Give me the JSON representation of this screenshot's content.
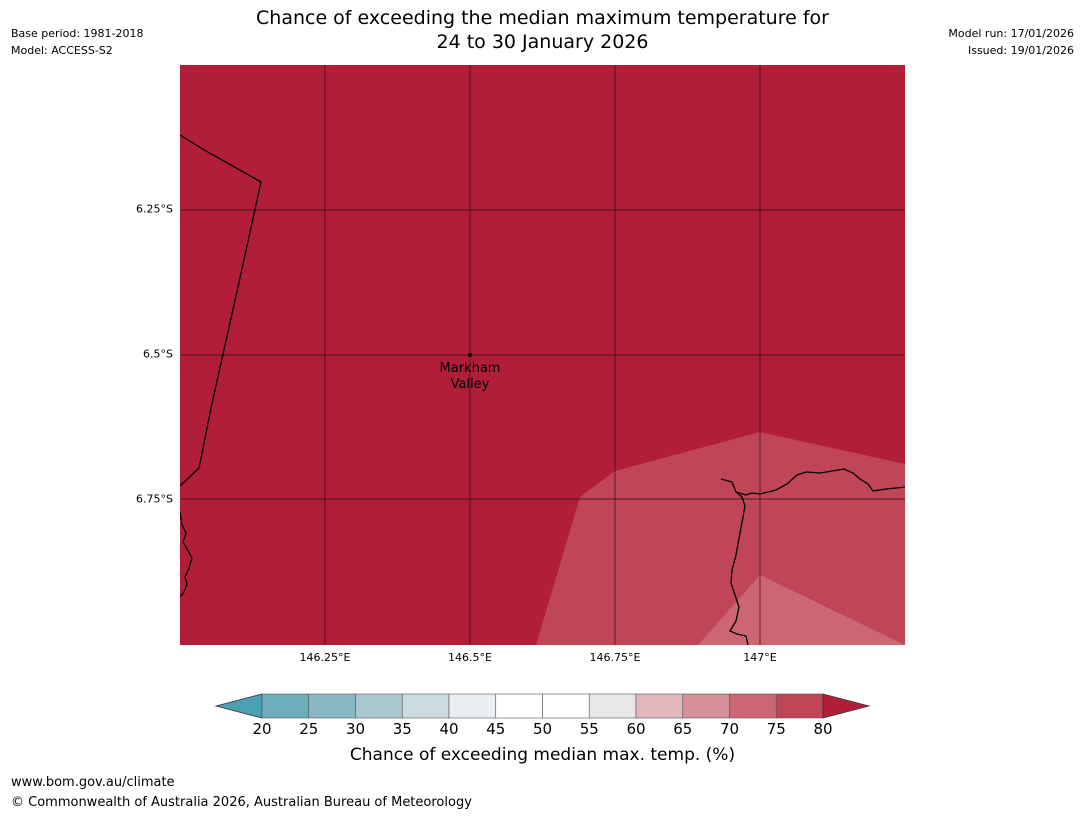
{
  "header": {
    "base_period": "Base period: 1981-2018",
    "model": "Model: ACCESS-S2",
    "title_line1": "Chance of exceeding the median maximum temperature for",
    "title_line2": "24 to 30 January 2026",
    "model_run": "Model run: 17/01/2026",
    "issued": "Issued: 19/01/2026"
  },
  "map": {
    "lat_labels": [
      "6.25°S",
      "6.5°S",
      "6.75°S"
    ],
    "lon_labels": [
      "146.25°E",
      "146.5°E",
      "146.75°E",
      "147°E"
    ],
    "place_name_line1": "Markham",
    "place_name_line2": "Valley",
    "background_class_color": "#b11e38"
  },
  "colorbar": {
    "labels": [
      "20",
      "25",
      "30",
      "35",
      "40",
      "45",
      "50",
      "55",
      "60",
      "65",
      "70",
      "75",
      "80"
    ],
    "colors": [
      "#4aa1b3",
      "#6caebd",
      "#8ab7c4",
      "#a9c8ce",
      "#cbdbdf",
      "#eaf0f2",
      "#ffffff",
      "#ffffff",
      "#e8e8e8",
      "#e2b8bd",
      "#d7919a",
      "#cc6673",
      "#c04556",
      "#b11e38"
    ],
    "title": "Chance of exceeding median max. temp. (%)"
  },
  "footer": {
    "url": "www.bom.gov.au/climate",
    "copyright": "© Commonwealth of Australia 2026, Australian Bureau of Meteorology"
  }
}
